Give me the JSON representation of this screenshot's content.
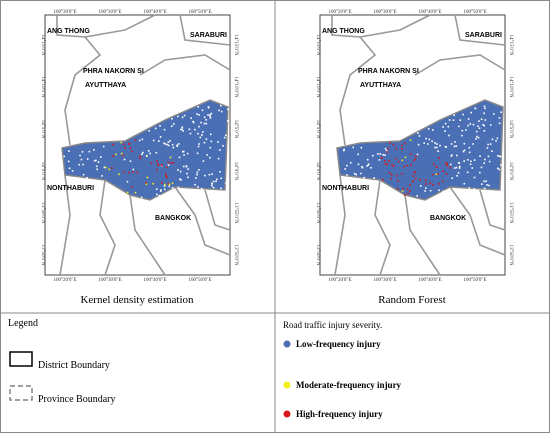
{
  "maps": [
    {
      "caption": "Kernel density estimation",
      "lon_labels": [
        "100°20'0\"E",
        "100°30'0\"E",
        "100°40'0\"E",
        "100°50'0\"E"
      ],
      "lat_labels": [
        "14°15'0\"N",
        "14°10'0\"N",
        "14°5'0\"N",
        "14°0'0\"N",
        "13°55'0\"N",
        "13°50'0\"N"
      ],
      "places": [
        "ANG THONG",
        "SARABURI",
        "PHRA NAKORN SI",
        "AYUTTHAYA",
        "NONTHABURI",
        "BANGKOK"
      ]
    },
    {
      "caption": "Random Forest",
      "lon_labels": [
        "100°20'0\"E",
        "100°30'0\"E",
        "100°40'0\"E",
        "100°50'0\"E"
      ],
      "lat_labels": [
        "14°15'0\"N",
        "14°10'0\"N",
        "14°5'0\"N",
        "14°0'0\"N",
        "13°55'0\"N",
        "13°50'0\"N"
      ],
      "places": [
        "ANG THONG",
        "SARABURI",
        "PHRA NAKORN SI",
        "AYUTTHAYA",
        "NONTHABURI",
        "BANGKOK"
      ]
    }
  ],
  "legend": {
    "title": "Legend",
    "boundaries": [
      "District Boundary",
      "Province Boundary"
    ]
  },
  "severity": {
    "title": "Road traffic injury severity.",
    "items": [
      {
        "name": "Low-frequency injury",
        "color": "#4a6fb5"
      },
      {
        "name": "Moderate-frequency injury",
        "color": "#f2ef1a"
      },
      {
        "name": "High-frequency injury",
        "color": "#d7191c"
      }
    ]
  }
}
